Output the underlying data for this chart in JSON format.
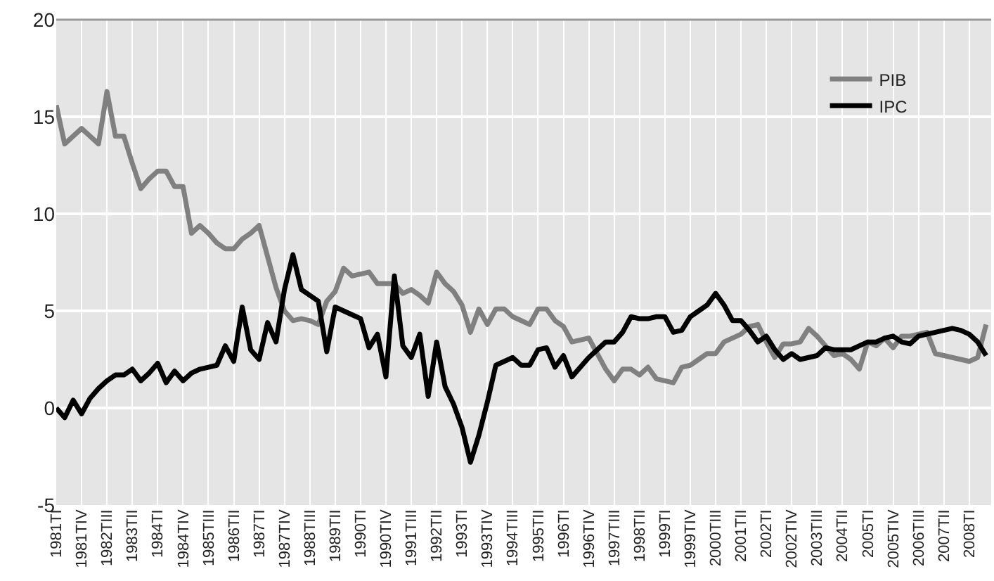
{
  "chart_data": {
    "type": "line",
    "categories": [
      "1981TI",
      null,
      null,
      "1981TIV",
      null,
      null,
      "1982TIII",
      null,
      null,
      "1983TII",
      null,
      null,
      "1984TI",
      null,
      null,
      "1984TIV",
      null,
      null,
      "1985TIII",
      null,
      null,
      "1986TII",
      null,
      null,
      "1987TI",
      null,
      null,
      "1987TIV",
      null,
      null,
      "1988TIII",
      null,
      null,
      "1989TII",
      null,
      null,
      "1990TI",
      null,
      null,
      "1990TIV",
      null,
      null,
      "1991TIII",
      null,
      null,
      "1992TII",
      null,
      null,
      "1993TI",
      null,
      null,
      "1993TIV",
      null,
      null,
      "1994TIII",
      null,
      null,
      "1995TII",
      null,
      null,
      "1996TI",
      null,
      null,
      "1996TIV",
      null,
      null,
      "1997TIII",
      null,
      null,
      "1998TII",
      null,
      null,
      "1999TI",
      null,
      null,
      "1999TIV",
      null,
      null,
      "2000TIII",
      null,
      null,
      "2001TII",
      null,
      null,
      "2002TI",
      null,
      null,
      "2002TIV",
      null,
      null,
      "2003TIII",
      null,
      null,
      "2004TII",
      null,
      null,
      "2005TI",
      null,
      null,
      "2005TIV",
      null,
      null,
      "2006TIII",
      null,
      null,
      "2007TII",
      null,
      null,
      "2008TI",
      null,
      null
    ],
    "series": [
      {
        "name": "PIB",
        "color": "#808080",
        "values": [
          15.6,
          13.6,
          14.0,
          14.4,
          14.0,
          13.6,
          16.3,
          14.0,
          14.0,
          12.6,
          11.3,
          11.8,
          12.2,
          12.2,
          11.4,
          11.4,
          9.0,
          9.4,
          9.0,
          8.5,
          8.2,
          8.2,
          8.7,
          9.0,
          9.4,
          7.8,
          6.2,
          5.0,
          4.5,
          4.6,
          4.5,
          4.3,
          5.5,
          6.0,
          7.2,
          6.8,
          6.9,
          7.0,
          6.4,
          6.4,
          6.4,
          5.9,
          6.1,
          5.8,
          5.4,
          7.0,
          6.4,
          6.0,
          5.3,
          3.9,
          5.1,
          4.3,
          5.1,
          5.1,
          4.7,
          4.5,
          4.3,
          5.1,
          5.1,
          4.5,
          4.2,
          3.4,
          3.5,
          3.6,
          2.8,
          2.0,
          1.4,
          2.0,
          2.0,
          1.7,
          2.1,
          1.5,
          1.4,
          1.3,
          2.1,
          2.2,
          2.5,
          2.8,
          2.8,
          3.4,
          3.6,
          3.8,
          4.2,
          4.3,
          3.4,
          2.6,
          3.3,
          3.3,
          3.4,
          4.1,
          3.7,
          3.2,
          2.7,
          2.8,
          2.5,
          2.0,
          3.4,
          3.2,
          3.6,
          3.1,
          3.7,
          3.7,
          3.8,
          3.9,
          2.8,
          2.7,
          2.6,
          2.5,
          2.4,
          2.6,
          4.3
        ]
      },
      {
        "name": "IPC",
        "color": "#000000",
        "values": [
          0,
          -0.5,
          0.4,
          -0.3,
          0.5,
          1.0,
          1.4,
          1.7,
          1.7,
          2.0,
          1.4,
          1.8,
          2.3,
          1.3,
          1.9,
          1.4,
          1.8,
          2.0,
          2.1,
          2.2,
          3.2,
          2.4,
          5.2,
          3.0,
          2.5,
          4.4,
          3.4,
          6.1,
          7.9,
          6.1,
          5.8,
          5.5,
          2.9,
          5.2,
          5.0,
          4.8,
          4.6,
          3.1,
          3.8,
          1.6,
          6.8,
          3.2,
          2.6,
          3.8,
          0.6,
          3.4,
          1.1,
          0.2,
          -1.0,
          -2.8,
          -1.4,
          0.3,
          2.2,
          2.4,
          2.6,
          2.2,
          2.2,
          3.0,
          3.1,
          2.1,
          2.7,
          1.6,
          2.1,
          2.6,
          3.0,
          3.4,
          3.4,
          3.9,
          4.7,
          4.6,
          4.6,
          4.7,
          4.7,
          3.9,
          4.0,
          4.7,
          5.0,
          5.3,
          5.9,
          5.3,
          4.5,
          4.5,
          4.0,
          3.4,
          3.7,
          3.0,
          2.5,
          2.8,
          2.5,
          2.6,
          2.7,
          3.1,
          3.0,
          3.0,
          3.0,
          3.2,
          3.4,
          3.4,
          3.6,
          3.7,
          3.4,
          3.3,
          3.7,
          3.8,
          3.9,
          4.0,
          4.1,
          4.0,
          3.8,
          3.4,
          2.7
        ]
      }
    ],
    "ylim": [
      -5,
      20
    ],
    "yticks": [
      -5,
      0,
      5,
      10,
      15,
      20
    ],
    "grid": true,
    "legend": "top right",
    "marker": "none",
    "line_style": "solid"
  }
}
